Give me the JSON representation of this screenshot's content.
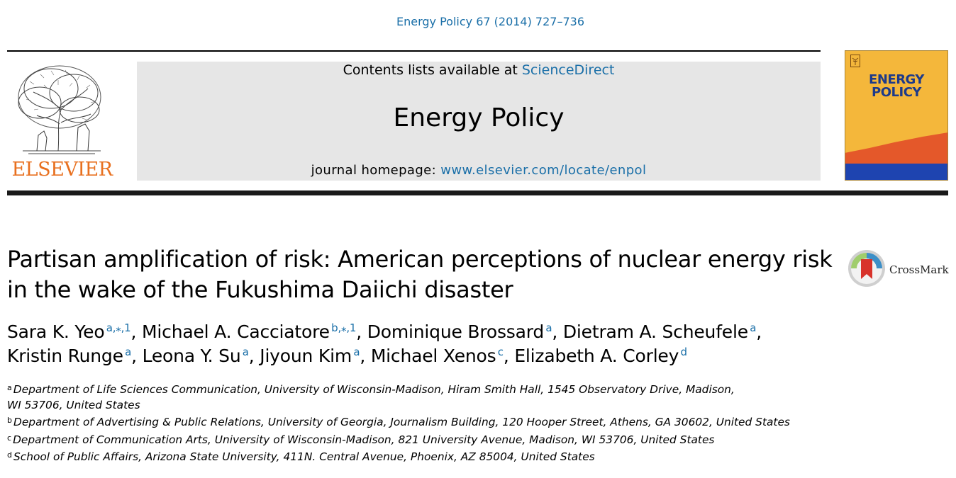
{
  "citation": "Energy Policy 67 (2014) 727–736",
  "banner": {
    "contents_prefix": "Contents lists available at ",
    "contents_link": "ScienceDirect",
    "journal_name": "Energy Policy",
    "homepage_prefix": "journal homepage: ",
    "homepage_link": "www.elsevier.com/locate/enpol"
  },
  "publisher_logo": {
    "text": "ELSEVIER",
    "color": "#e8701f"
  },
  "cover": {
    "title_line1": "ENERGY",
    "title_line2": "POLICY",
    "background": "#f4b73b",
    "accent": "#e4582a",
    "bottom": "#1e44b0"
  },
  "article": {
    "title": "Partisan amplification of risk: American perceptions of nuclear energy risk in the wake of the Fukushima Daiichi disaster",
    "crossmark_label": "CrossMark",
    "authors": [
      {
        "name": "Sara K. Yeo",
        "sup": "a,⁎,1",
        "sep": ", "
      },
      {
        "name": "Michael A. Cacciatore",
        "sup": "b,⁎,1",
        "sep": ", "
      },
      {
        "name": "Dominique Brossard",
        "sup": "a",
        "sep": ", "
      },
      {
        "name": "Dietram A. Scheufele",
        "sup": "a",
        "sep": ","
      },
      {
        "name": "Kristin Runge",
        "sup": "a",
        "sep": ", "
      },
      {
        "name": "Leona Y. Su",
        "sup": "a",
        "sep": ", "
      },
      {
        "name": "Jiyoun Kim",
        "sup": "a",
        "sep": ", "
      },
      {
        "name": "Michael Xenos",
        "sup": "c",
        "sep": ", "
      },
      {
        "name": "Elizabeth A. Corley",
        "sup": "d",
        "sep": ""
      }
    ],
    "affiliations": [
      {
        "label": "a",
        "text": "Department of Life Sciences Communication, University of Wisconsin-Madison, Hiram Smith Hall, 1545 Observatory Drive, Madison,",
        "text2": "WI 53706, United States"
      },
      {
        "label": "b",
        "text": "Department of Advertising & Public Relations, University of Georgia, Journalism Building, 120 Hooper Street, Athens, GA 30602, United States"
      },
      {
        "label": "c",
        "text": "Department of Communication Arts, University of Wisconsin-Madison, 821 University Avenue, Madison, WI 53706, United States"
      },
      {
        "label": "d",
        "text": "School of Public Affairs, Arizona State University, 411N. Central Avenue, Phoenix, AZ 85004, United States"
      }
    ]
  }
}
